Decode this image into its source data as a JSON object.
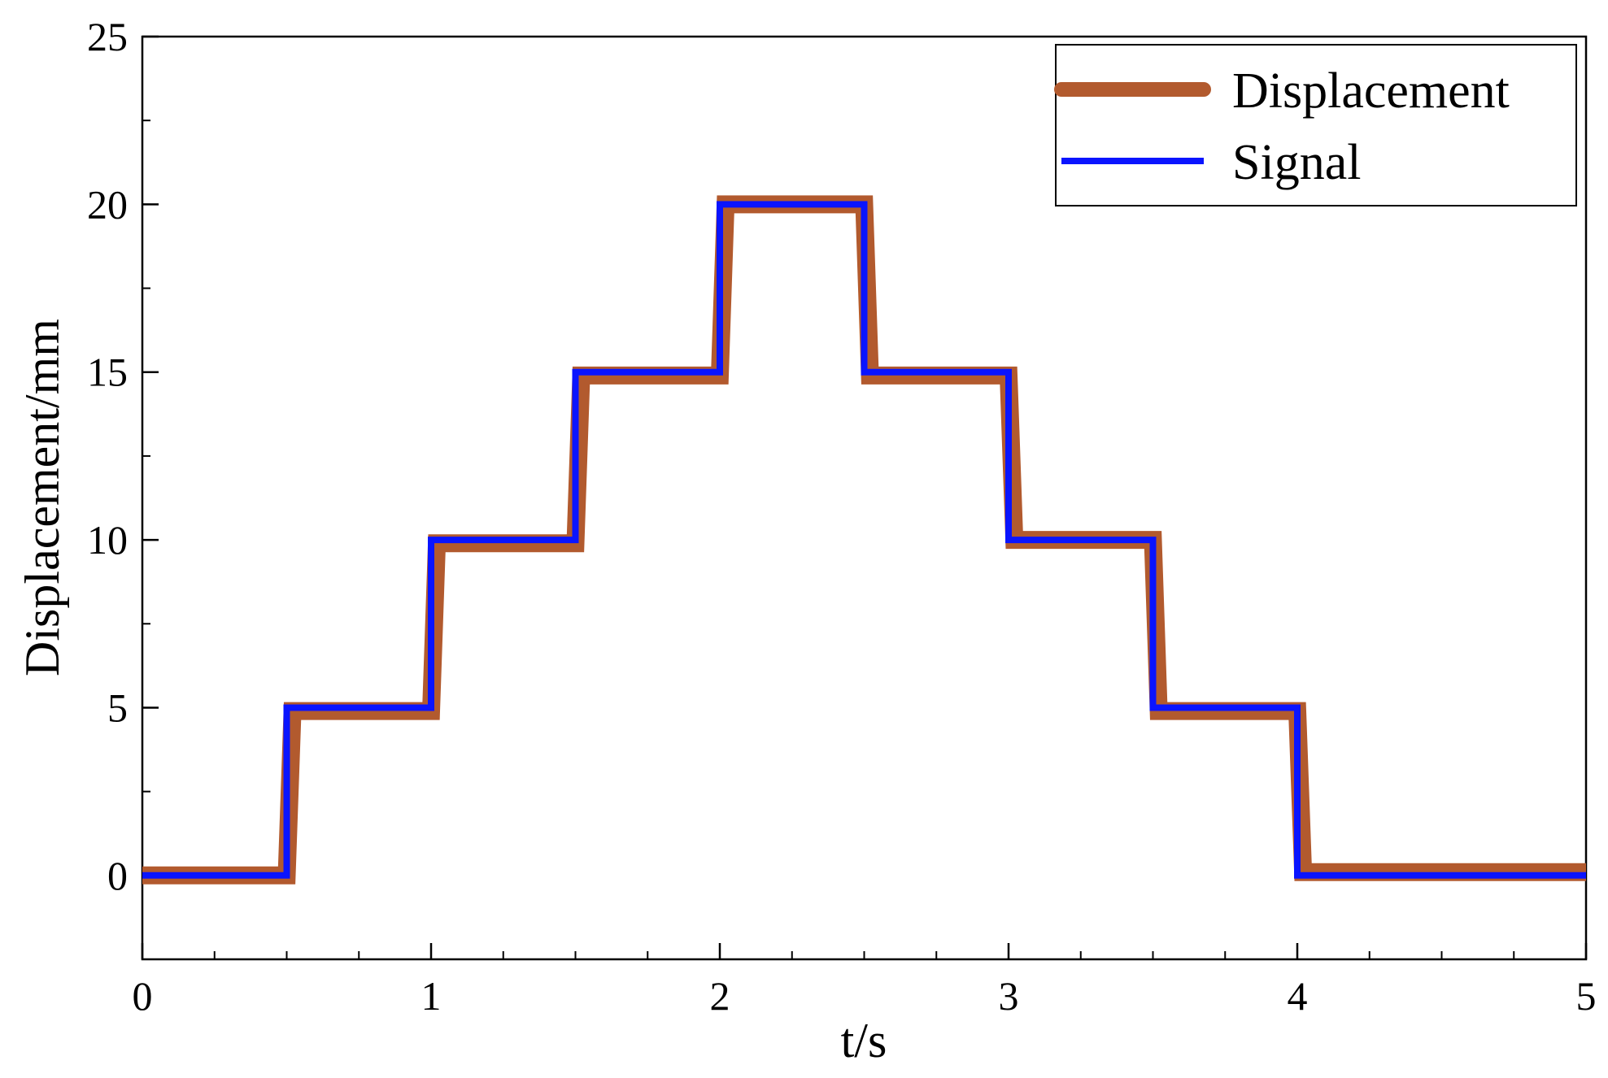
{
  "chart_data": {
    "type": "line",
    "xlabel": "t/s",
    "ylabel": "Displacement/mm",
    "xlim": [
      0,
      5
    ],
    "ylim": [
      -2.5,
      25
    ],
    "x_ticks": [
      "0",
      "1",
      "2",
      "3",
      "4",
      "5"
    ],
    "y_ticks": [
      "0",
      "5",
      "10",
      "15",
      "20",
      "25"
    ],
    "legend_position": "top-right",
    "grid": false,
    "series": [
      {
        "name": "Displacement",
        "color": "#b25a2e",
        "x": [
          0,
          0.5,
          0.52,
          1.0,
          1.02,
          1.5,
          1.52,
          2.0,
          2.02,
          2.5,
          2.52,
          3.0,
          3.02,
          3.5,
          3.52,
          4.0,
          4.02,
          5.0
        ],
        "y": [
          0,
          0,
          4.9,
          4.9,
          9.9,
          9.9,
          14.9,
          14.9,
          20.0,
          20.0,
          14.9,
          14.9,
          10.0,
          10.0,
          4.9,
          4.9,
          0.1,
          0.1
        ]
      },
      {
        "name": "Signal",
        "color": "#0a14ff",
        "x": [
          0,
          0.5,
          0.5,
          1.0,
          1.0,
          1.5,
          1.5,
          2.0,
          2.0,
          2.5,
          2.5,
          3.0,
          3.0,
          3.5,
          3.5,
          4.0,
          4.0,
          5.0
        ],
        "y": [
          0,
          0,
          5,
          5,
          10,
          10,
          15,
          15,
          20,
          20,
          15,
          15,
          10,
          10,
          5,
          5,
          0,
          0
        ]
      }
    ]
  }
}
